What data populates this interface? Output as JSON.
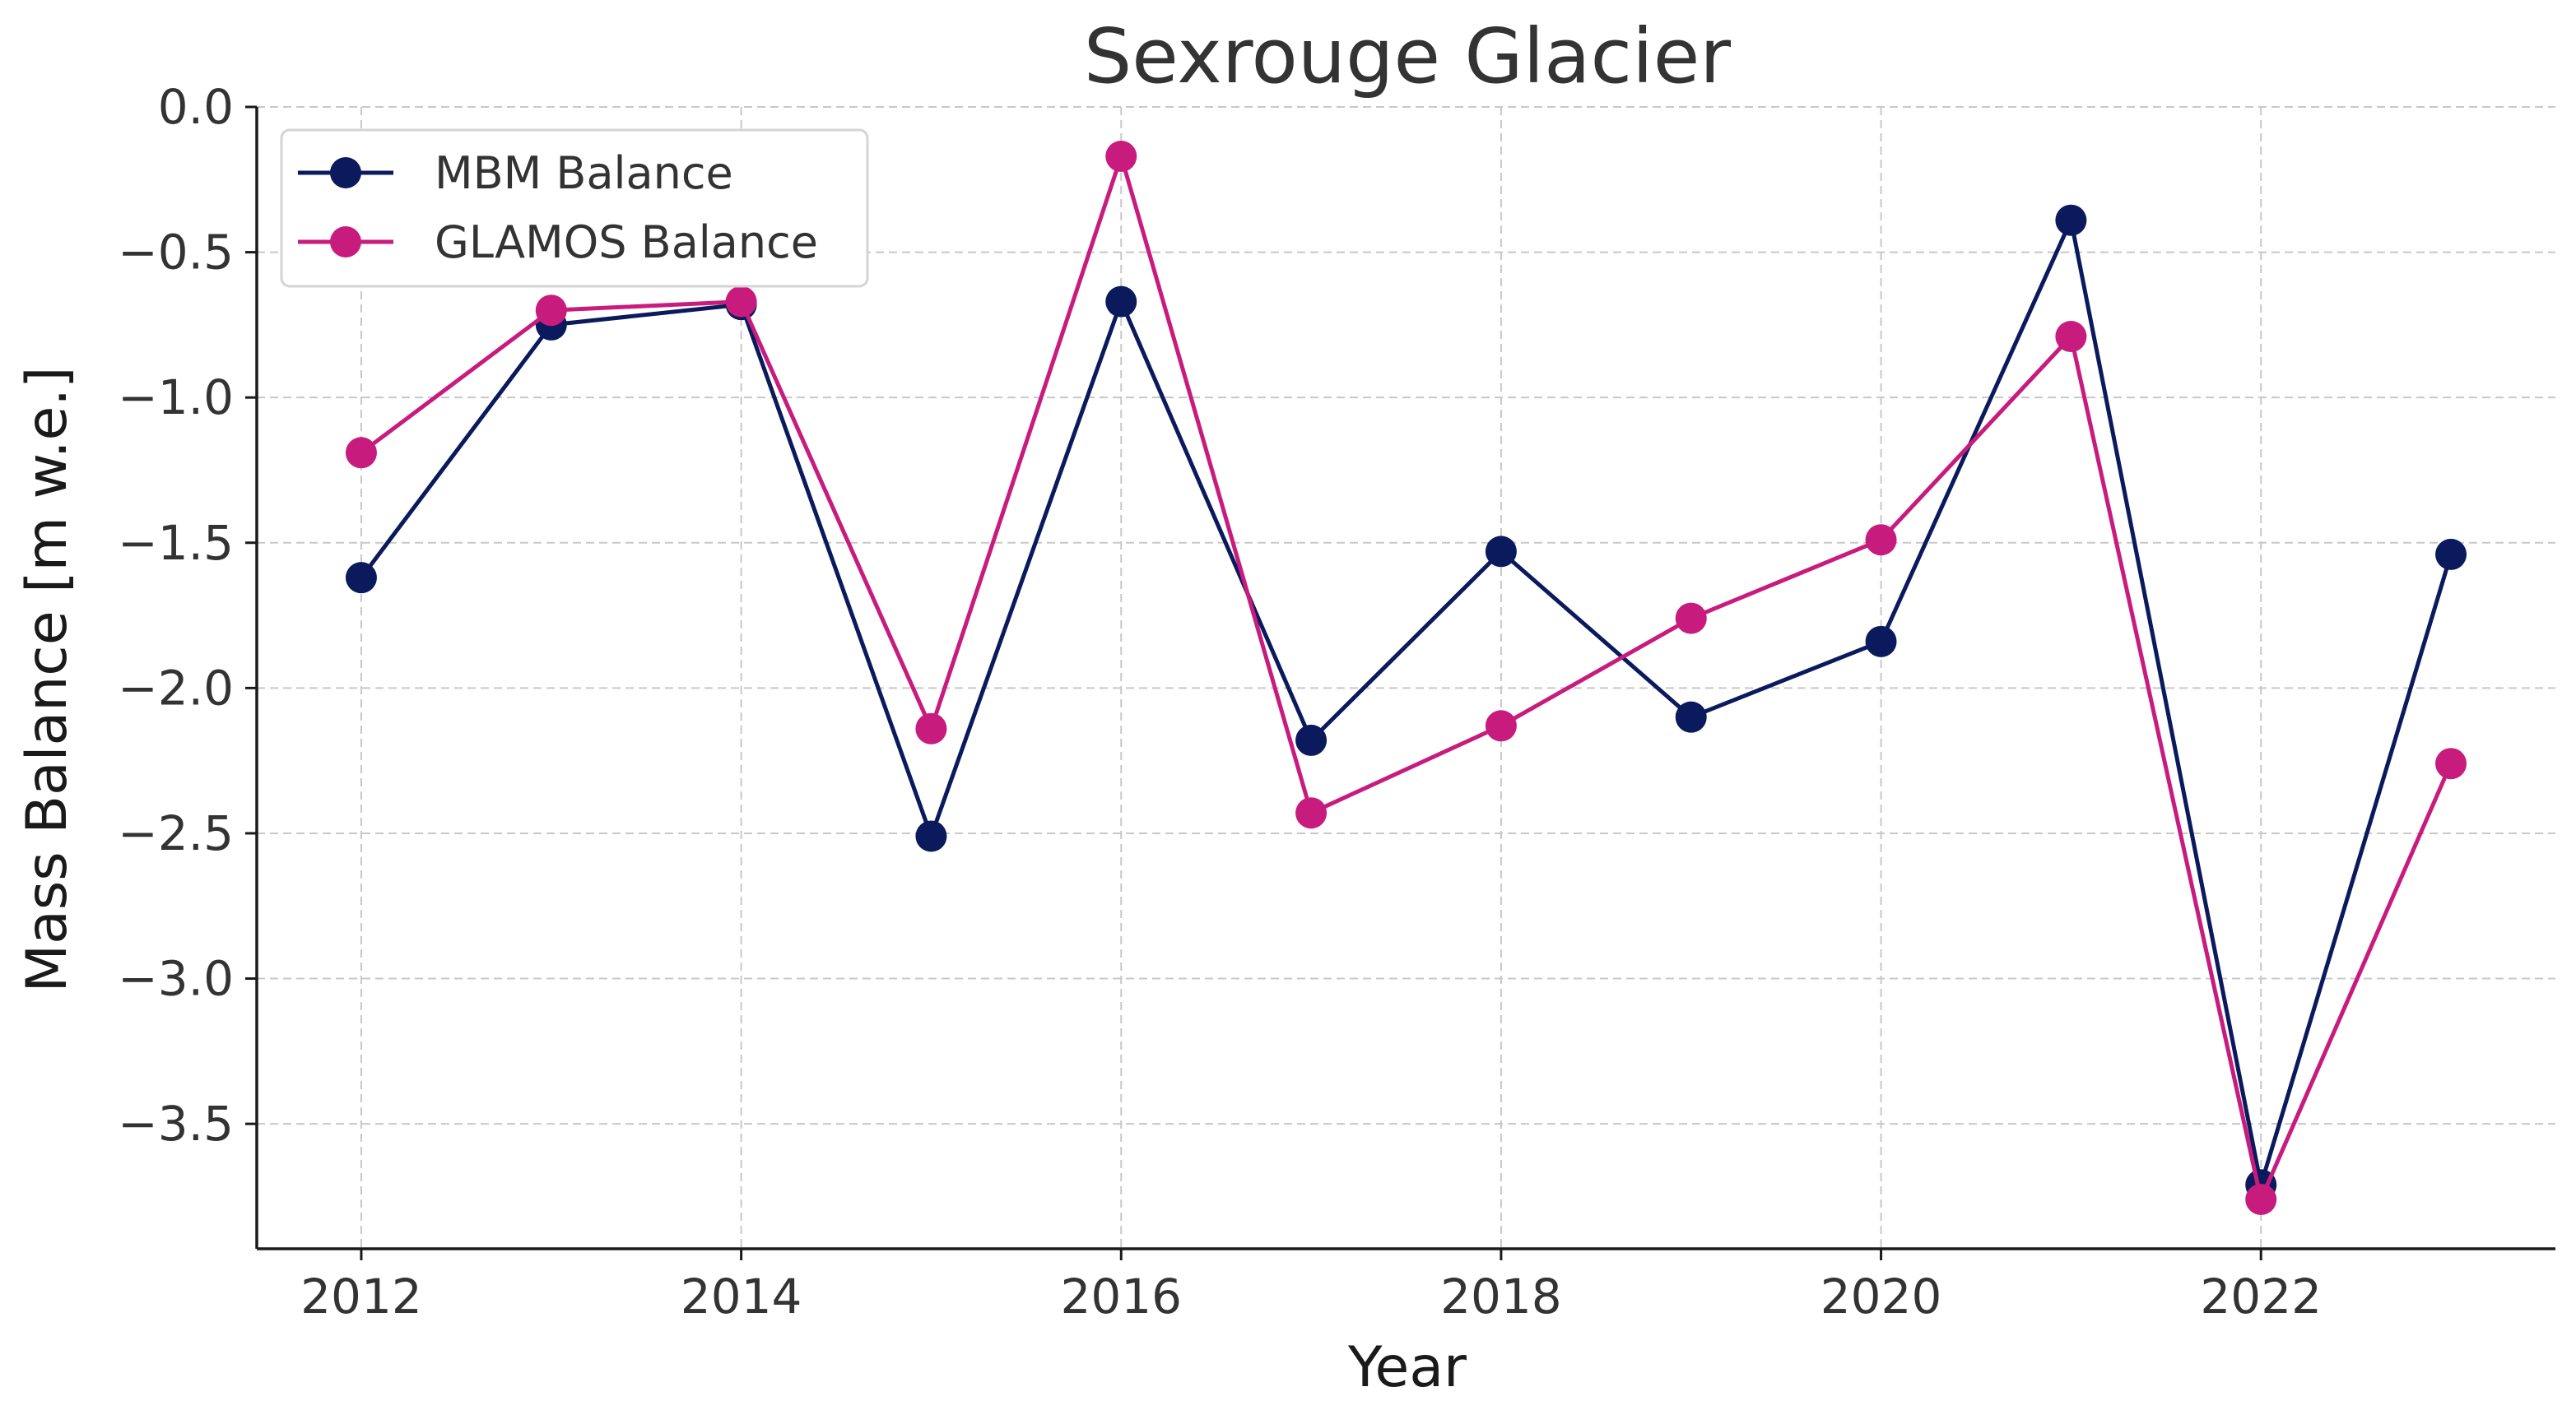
{
  "chart_data": {
    "type": "line",
    "title": "Sexrouge Glacier",
    "xlabel": "Year",
    "ylabel": "Mass Balance [m w.e.]",
    "x": [
      2012,
      2013,
      2014,
      2015,
      2016,
      2017,
      2018,
      2019,
      2020,
      2021,
      2022,
      2023
    ],
    "xlim": [
      2011.45,
      2023.55
    ],
    "ylim": [
      -3.93,
      0.0
    ],
    "xticks": [
      2012,
      2014,
      2016,
      2018,
      2020,
      2022
    ],
    "xtick_labels": [
      "2012",
      "2014",
      "2016",
      "2018",
      "2020",
      "2022"
    ],
    "yticks": [
      0.0,
      -0.5,
      -1.0,
      -1.5,
      -2.0,
      -2.5,
      -3.0,
      -3.5
    ],
    "ytick_labels": [
      "0.0",
      "−0.5",
      "−1.0",
      "−1.5",
      "−2.0",
      "−2.5",
      "−3.0",
      "−3.5"
    ],
    "grid": true,
    "legend_position": "top-left",
    "series": [
      {
        "name": "MBM Balance",
        "color": "#0a1a5c",
        "marker": "circle",
        "values": [
          -1.62,
          -0.75,
          -0.68,
          -2.51,
          -0.67,
          -2.18,
          -1.53,
          -2.1,
          -1.84,
          -0.39,
          -3.71,
          -1.54
        ]
      },
      {
        "name": "GLAMOS Balance",
        "color": "#c71c7e",
        "marker": "circle",
        "values": [
          -1.19,
          -0.7,
          -0.67,
          -2.14,
          -0.17,
          -2.43,
          -2.13,
          -1.76,
          -1.49,
          -0.79,
          -3.76,
          -2.26
        ]
      }
    ]
  }
}
